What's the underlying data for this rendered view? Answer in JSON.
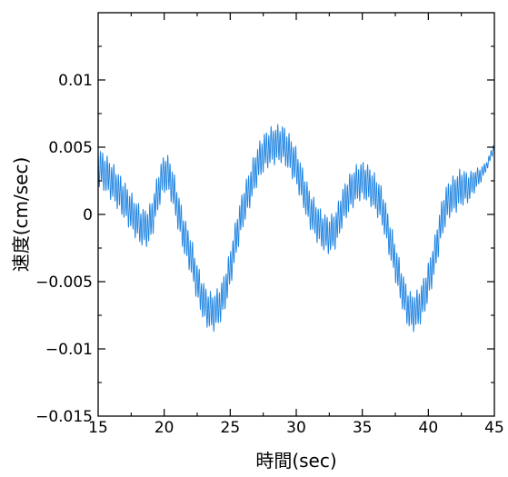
{
  "chart_data": {
    "type": "line",
    "xlabel": "時間(sec)",
    "ylabel": "速度(cm/sec)",
    "xlim": [
      15,
      45
    ],
    "ylim": [
      -0.015,
      0.015
    ],
    "x_ticks": [
      15,
      20,
      25,
      30,
      35,
      40,
      45
    ],
    "x_tick_labels": [
      "15",
      "20",
      "25",
      "30",
      "35",
      "40",
      "45"
    ],
    "y_ticks": [
      -0.015,
      -0.01,
      -0.005,
      0,
      0.005,
      0.01
    ],
    "y_tick_labels": [
      "−0.015",
      "−0.01",
      "−0.005",
      "0",
      "0.005",
      "0.01"
    ],
    "grid": false,
    "colors": {
      "series": "#1f83e0",
      "axes": "#000000"
    },
    "series": [
      {
        "x": [
          15,
          16,
          17,
          18,
          18.5,
          19,
          19.5,
          20,
          20.5,
          21,
          21.5,
          22,
          22.5,
          23,
          23.5,
          24,
          24.5,
          25,
          25.5,
          26,
          26.5,
          27,
          27.5,
          28,
          28.5,
          29,
          29.5,
          30,
          30.5,
          31,
          31.5,
          32,
          32.5,
          33,
          33.5,
          34,
          34.5,
          35,
          35.5,
          36,
          36.5,
          37,
          37.5,
          38,
          38.5,
          39,
          39.5,
          40,
          40.5,
          41,
          41.5,
          42,
          42.5,
          43,
          43.5,
          44,
          44.5,
          45
        ],
        "values": [
          0.0035,
          0.0025,
          0.001,
          -0.0005,
          -0.001,
          -0.0005,
          0.0015,
          0.003,
          0.0025,
          0.0005,
          -0.0015,
          -0.003,
          -0.005,
          -0.0065,
          -0.0072,
          -0.007,
          -0.006,
          -0.004,
          -0.0015,
          0.0005,
          0.002,
          0.0035,
          0.0045,
          0.005,
          0.0052,
          0.0052,
          0.0045,
          0.0035,
          0.002,
          0.0005,
          -0.0005,
          -0.0012,
          -0.0015,
          -0.001,
          0.0005,
          0.0015,
          0.0022,
          0.0025,
          0.0022,
          0.0015,
          0.0005,
          -0.0015,
          -0.0035,
          -0.0055,
          -0.007,
          -0.0072,
          -0.0065,
          -0.005,
          -0.003,
          -0.0005,
          0.001,
          0.0015,
          0.002,
          0.002,
          0.0025,
          0.003,
          0.0038,
          0.005
        ],
        "oscillation_amplitude": 0.0012,
        "oscillation_period_sec": 0.17
      }
    ]
  }
}
